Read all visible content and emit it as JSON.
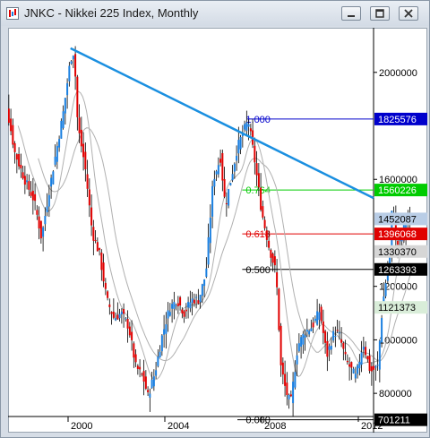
{
  "window": {
    "title": "JNKC - Nikkei 225 Index, Monthly",
    "controls": [
      "minimize",
      "restore",
      "close"
    ]
  },
  "chart_data": {
    "type": "candlestick",
    "symbol": "JNKC",
    "interval": "Monthly",
    "x_ticks": [
      "2000",
      "2004",
      "2008",
      "2012"
    ],
    "y_ticks": [
      "2000000",
      "1600000",
      "1200000",
      "1000000",
      "800000"
    ],
    "ylim": [
      700000,
      2150000
    ],
    "price_labels": [
      {
        "text": "1825576",
        "value": 1825576,
        "bg": "#0000cc",
        "fg": "#ffffff"
      },
      {
        "text": "1560226",
        "value": 1560226,
        "bg": "#00cc00",
        "fg": "#ffffff"
      },
      {
        "text": "1452087",
        "value": 1452087,
        "bg": "#b9cde6",
        "fg": "#000000"
      },
      {
        "text": "1396068",
        "value": 1396068,
        "bg": "#e00000",
        "fg": "#ffffff"
      },
      {
        "text": "1330370",
        "value": 1330370,
        "bg": "#d6d6d6",
        "fg": "#000000"
      },
      {
        "text": "1263393",
        "value": 1263393,
        "bg": "#000000",
        "fg": "#ffffff"
      },
      {
        "text": "1121373",
        "value": 1121373,
        "bg": "#d9edd9",
        "fg": "#000000"
      },
      {
        "text": "701211",
        "value": 701211,
        "bg": "#000000",
        "fg": "#ffffff"
      }
    ],
    "fibonacci": [
      {
        "label": "1.000",
        "value": 1825576,
        "color": "#0000cc"
      },
      {
        "label": "0.764",
        "value": 1560226,
        "color": "#00cc00"
      },
      {
        "label": "0.618",
        "value": 1396068,
        "color": "#e00000"
      },
      {
        "label": "0.500",
        "value": 1263393,
        "color": "#000000"
      },
      {
        "label": "0.000",
        "value": 701211,
        "color": "#000000"
      }
    ],
    "trendline": {
      "color": "#1a8fe0"
    },
    "colors": {
      "up": "#1a7fe0",
      "down": "#e00000",
      "ma": "#b0b0b0"
    },
    "path": [
      [
        1997.0,
        1850000
      ],
      [
        1997.4,
        1900000
      ],
      [
        1997.8,
        1700000
      ],
      [
        1998.2,
        1600000
      ],
      [
        1998.6,
        1520000
      ],
      [
        1998.9,
        1380000
      ],
      [
        1999.2,
        1550000
      ],
      [
        1999.5,
        1700000
      ],
      [
        1999.8,
        1850000
      ],
      [
        2000.1,
        2050000
      ],
      [
        2000.25,
        2080000
      ],
      [
        2000.4,
        1800000
      ],
      [
        2000.7,
        1650000
      ],
      [
        2001.0,
        1400000
      ],
      [
        2001.3,
        1320000
      ],
      [
        2001.6,
        1150000
      ],
      [
        2001.9,
        1080000
      ],
      [
        2002.2,
        1100000
      ],
      [
        2002.5,
        1050000
      ],
      [
        2002.8,
        900000
      ],
      [
        2003.1,
        860000
      ],
      [
        2003.3,
        790000
      ],
      [
        2003.6,
        880000
      ],
      [
        2003.9,
        1020000
      ],
      [
        2004.2,
        1120000
      ],
      [
        2004.5,
        1150000
      ],
      [
        2004.8,
        1100000
      ],
      [
        2005.1,
        1150000
      ],
      [
        2005.4,
        1150000
      ],
      [
        2005.7,
        1250000
      ],
      [
        2006.0,
        1600000
      ],
      [
        2006.3,
        1680000
      ],
      [
        2006.5,
        1500000
      ],
      [
        2006.8,
        1630000
      ],
      [
        2007.0,
        1720000
      ],
      [
        2007.3,
        1790000
      ],
      [
        2007.45,
        1820000
      ],
      [
        2007.7,
        1680000
      ],
      [
        2008.0,
        1480000
      ],
      [
        2008.3,
        1350000
      ],
      [
        2008.6,
        1250000
      ],
      [
        2008.8,
        900000
      ],
      [
        2009.0,
        810000
      ],
      [
        2009.2,
        760000
      ],
      [
        2009.5,
        980000
      ],
      [
        2009.8,
        1030000
      ],
      [
        2010.1,
        1050000
      ],
      [
        2010.4,
        1110000
      ],
      [
        2010.7,
        940000
      ],
      [
        2011.0,
        1030000
      ],
      [
        2011.2,
        1020000
      ],
      [
        2011.5,
        920000
      ],
      [
        2011.9,
        860000
      ],
      [
        2012.2,
        990000
      ],
      [
        2012.5,
        880000
      ],
      [
        2012.8,
        900000
      ],
      [
        2013.0,
        1130000
      ],
      [
        2013.3,
        1320000
      ],
      [
        2013.4,
        1500000
      ],
      [
        2013.6,
        1350000
      ],
      [
        2013.8,
        1400000
      ],
      [
        2014.0,
        1450000
      ],
      [
        2014.2,
        1400000
      ]
    ]
  }
}
